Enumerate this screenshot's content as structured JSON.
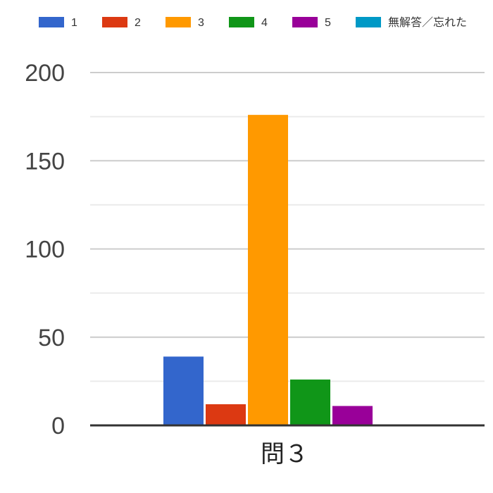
{
  "chart_data": {
    "type": "bar",
    "categories": [
      "問３"
    ],
    "series": [
      {
        "name": "1",
        "values": [
          39
        ],
        "color": "#3366cc"
      },
      {
        "name": "2",
        "values": [
          12
        ],
        "color": "#dc3912"
      },
      {
        "name": "3",
        "values": [
          176
        ],
        "color": "#ff9900"
      },
      {
        "name": "4",
        "values": [
          26
        ],
        "color": "#109618"
      },
      {
        "name": "5",
        "values": [
          11
        ],
        "color": "#990099"
      },
      {
        "name": "無解答／忘れた",
        "values": [
          0
        ],
        "color": "#0099c6"
      }
    ],
    "yticks": [
      0,
      50,
      100,
      150,
      200
    ],
    "ylim": [
      0,
      200
    ],
    "grid": true,
    "legend": "top"
  }
}
